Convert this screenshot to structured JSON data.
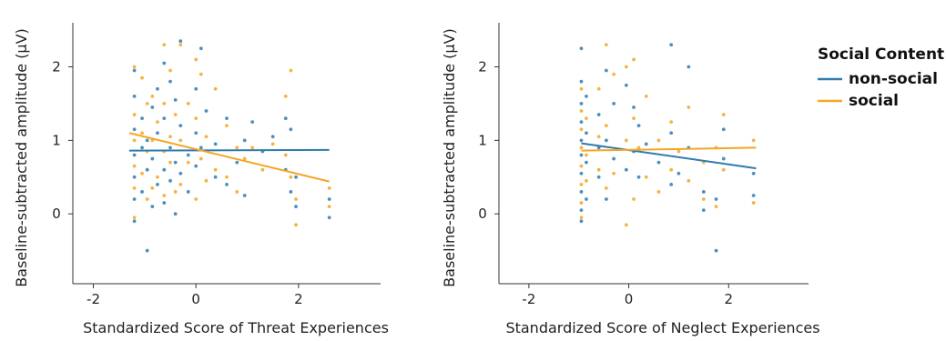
{
  "legend": {
    "title": "Social Content",
    "entries": [
      {
        "name": "non-social",
        "color": "#2e7bb0"
      },
      {
        "name": "social",
        "color": "#f5a623"
      }
    ]
  },
  "chart_data": [
    {
      "type": "scatter",
      "xlabel": "Standardized Score of Threat Experiences",
      "ylabel": "Baseline-subtracted amplitude (µV)",
      "xlim": [
        -2.4,
        3.6
      ],
      "ylim": [
        -0.95,
        2.6
      ],
      "xticks": [
        -2,
        0,
        2
      ],
      "yticks": [
        0,
        1,
        2
      ],
      "x_columns": [
        -1.2,
        -1.05,
        -0.95,
        -0.85,
        -0.75,
        -0.62,
        -0.5,
        -0.4,
        -0.3,
        -0.15,
        0.0,
        0.1,
        0.2,
        0.38,
        0.6,
        0.8,
        0.95,
        1.1,
        1.3,
        1.5,
        1.75,
        1.85,
        1.95,
        2.6
      ],
      "series": [
        {
          "name": "non-social",
          "color": "#2e7bb0",
          "points": [
            [
              -1.2,
              1.95
            ],
            [
              -1.2,
              1.6
            ],
            [
              -1.2,
              1.15
            ],
            [
              -1.2,
              0.8
            ],
            [
              -1.2,
              0.5
            ],
            [
              -1.2,
              0.2
            ],
            [
              -1.2,
              -0.1
            ],
            [
              -1.05,
              1.3
            ],
            [
              -1.05,
              0.9
            ],
            [
              -1.05,
              0.3
            ],
            [
              -0.95,
              1.0
            ],
            [
              -0.95,
              0.6
            ],
            [
              -0.95,
              -0.5
            ],
            [
              -0.85,
              1.45
            ],
            [
              -0.85,
              0.75
            ],
            [
              -0.85,
              0.1
            ],
            [
              -0.75,
              1.7
            ],
            [
              -0.75,
              1.1
            ],
            [
              -0.75,
              0.4
            ],
            [
              -0.62,
              2.05
            ],
            [
              -0.62,
              1.3
            ],
            [
              -0.62,
              0.6
            ],
            [
              -0.62,
              0.15
            ],
            [
              -0.5,
              1.8
            ],
            [
              -0.5,
              0.9
            ],
            [
              -0.5,
              0.45
            ],
            [
              -0.4,
              1.55
            ],
            [
              -0.4,
              0.7
            ],
            [
              -0.4,
              0.0
            ],
            [
              -0.3,
              2.35
            ],
            [
              -0.3,
              1.2
            ],
            [
              -0.3,
              0.55
            ],
            [
              -0.15,
              0.8
            ],
            [
              -0.15,
              0.3
            ],
            [
              0.0,
              1.7
            ],
            [
              0.0,
              1.1
            ],
            [
              0.0,
              0.65
            ],
            [
              0.1,
              2.25
            ],
            [
              0.1,
              0.9
            ],
            [
              0.2,
              1.4
            ],
            [
              0.38,
              0.95
            ],
            [
              0.38,
              0.5
            ],
            [
              0.6,
              1.3
            ],
            [
              0.6,
              0.4
            ],
            [
              0.8,
              0.7
            ],
            [
              0.95,
              1.0
            ],
            [
              0.95,
              0.25
            ],
            [
              1.1,
              1.25
            ],
            [
              1.3,
              0.85
            ],
            [
              1.5,
              1.05
            ],
            [
              1.75,
              1.3
            ],
            [
              1.75,
              0.6
            ],
            [
              1.85,
              1.15
            ],
            [
              1.85,
              0.3
            ],
            [
              1.95,
              0.5
            ],
            [
              1.95,
              0.1
            ],
            [
              2.6,
              0.2
            ],
            [
              2.6,
              -0.05
            ]
          ]
        },
        {
          "name": "social",
          "color": "#f5a623",
          "points": [
            [
              -1.2,
              2.0
            ],
            [
              -1.2,
              1.35
            ],
            [
              -1.2,
              1.0
            ],
            [
              -1.2,
              0.65
            ],
            [
              -1.2,
              0.35
            ],
            [
              -1.2,
              -0.05
            ],
            [
              -1.05,
              1.85
            ],
            [
              -1.05,
              1.1
            ],
            [
              -1.05,
              0.55
            ],
            [
              -0.95,
              1.5
            ],
            [
              -0.95,
              0.85
            ],
            [
              -0.95,
              0.2
            ],
            [
              -0.85,
              1.6
            ],
            [
              -0.85,
              1.0
            ],
            [
              -0.85,
              0.35
            ],
            [
              -0.75,
              1.25
            ],
            [
              -0.75,
              0.5
            ],
            [
              -0.62,
              2.3
            ],
            [
              -0.62,
              1.5
            ],
            [
              -0.62,
              0.85
            ],
            [
              -0.62,
              0.25
            ],
            [
              -0.5,
              1.95
            ],
            [
              -0.5,
              1.05
            ],
            [
              -0.5,
              0.7
            ],
            [
              -0.4,
              1.35
            ],
            [
              -0.4,
              0.3
            ],
            [
              -0.3,
              2.3
            ],
            [
              -0.3,
              1.0
            ],
            [
              -0.3,
              0.4
            ],
            [
              -0.15,
              1.5
            ],
            [
              -0.15,
              0.7
            ],
            [
              0.0,
              2.1
            ],
            [
              0.0,
              1.3
            ],
            [
              0.0,
              0.2
            ],
            [
              0.1,
              1.9
            ],
            [
              0.1,
              0.75
            ],
            [
              0.2,
              1.05
            ],
            [
              0.2,
              0.45
            ],
            [
              0.38,
              1.7
            ],
            [
              0.38,
              0.6
            ],
            [
              0.6,
              1.2
            ],
            [
              0.6,
              0.5
            ],
            [
              0.8,
              0.9
            ],
            [
              0.8,
              0.3
            ],
            [
              0.95,
              0.75
            ],
            [
              1.1,
              0.9
            ],
            [
              1.3,
              0.6
            ],
            [
              1.5,
              0.95
            ],
            [
              1.75,
              1.6
            ],
            [
              1.75,
              0.8
            ],
            [
              1.85,
              1.95
            ],
            [
              1.85,
              0.5
            ],
            [
              1.95,
              0.2
            ],
            [
              1.95,
              -0.15
            ],
            [
              2.6,
              0.35
            ],
            [
              2.6,
              0.1
            ]
          ]
        }
      ],
      "fit_lines": [
        {
          "name": "non-social",
          "color": "#2e7bb0",
          "x": [
            -1.3,
            2.6
          ],
          "y": [
            0.86,
            0.87
          ]
        },
        {
          "name": "social",
          "color": "#f5a623",
          "x": [
            -1.3,
            2.6
          ],
          "y": [
            1.1,
            0.44
          ]
        }
      ]
    },
    {
      "type": "scatter",
      "xlabel": "Standardized Score of Neglect Experiences",
      "ylabel": "Baseline-subtracted amplitude (µV)",
      "xlim": [
        -2.6,
        3.6
      ],
      "ylim": [
        -0.95,
        2.6
      ],
      "xticks": [
        -2,
        0,
        2
      ],
      "yticks": [
        0,
        1,
        2
      ],
      "x_columns": [
        -0.95,
        -0.85,
        -0.6,
        -0.45,
        -0.3,
        -0.05,
        0.1,
        0.2,
        0.35,
        0.6,
        0.85,
        1.0,
        1.2,
        1.5,
        1.75,
        1.9,
        2.5
      ],
      "series": [
        {
          "name": "non-social",
          "color": "#2e7bb0",
          "points": [
            [
              -0.95,
              2.25
            ],
            [
              -0.95,
              1.8
            ],
            [
              -0.95,
              1.5
            ],
            [
              -0.95,
              1.25
            ],
            [
              -0.95,
              1.0
            ],
            [
              -0.95,
              0.8
            ],
            [
              -0.95,
              0.55
            ],
            [
              -0.95,
              0.3
            ],
            [
              -0.95,
              0.05
            ],
            [
              -0.95,
              -0.1
            ],
            [
              -0.85,
              1.6
            ],
            [
              -0.85,
              1.1
            ],
            [
              -0.85,
              0.7
            ],
            [
              -0.85,
              0.2
            ],
            [
              -0.6,
              1.35
            ],
            [
              -0.6,
              0.9
            ],
            [
              -0.6,
              0.5
            ],
            [
              -0.45,
              1.95
            ],
            [
              -0.45,
              1.0
            ],
            [
              -0.45,
              0.2
            ],
            [
              -0.3,
              1.5
            ],
            [
              -0.3,
              0.75
            ],
            [
              -0.05,
              1.75
            ],
            [
              -0.05,
              0.6
            ],
            [
              0.1,
              1.45
            ],
            [
              0.1,
              0.85
            ],
            [
              0.2,
              1.2
            ],
            [
              0.2,
              0.5
            ],
            [
              0.35,
              0.95
            ],
            [
              0.6,
              0.7
            ],
            [
              0.85,
              2.3
            ],
            [
              0.85,
              1.1
            ],
            [
              0.85,
              0.4
            ],
            [
              1.0,
              0.55
            ],
            [
              1.2,
              2.0
            ],
            [
              1.2,
              0.9
            ],
            [
              1.5,
              0.3
            ],
            [
              1.5,
              0.05
            ],
            [
              1.75,
              -0.5
            ],
            [
              1.75,
              0.2
            ],
            [
              1.9,
              1.15
            ],
            [
              1.9,
              0.75
            ],
            [
              2.5,
              0.55
            ],
            [
              2.5,
              0.25
            ]
          ]
        },
        {
          "name": "social",
          "color": "#f5a623",
          "points": [
            [
              -0.95,
              1.7
            ],
            [
              -0.95,
              1.4
            ],
            [
              -0.95,
              1.15
            ],
            [
              -0.95,
              0.9
            ],
            [
              -0.95,
              0.65
            ],
            [
              -0.95,
              0.4
            ],
            [
              -0.95,
              0.15
            ],
            [
              -0.95,
              -0.05
            ],
            [
              -0.85,
              1.3
            ],
            [
              -0.85,
              0.8
            ],
            [
              -0.85,
              0.45
            ],
            [
              -0.6,
              1.7
            ],
            [
              -0.6,
              1.05
            ],
            [
              -0.6,
              0.6
            ],
            [
              -0.45,
              2.3
            ],
            [
              -0.45,
              1.2
            ],
            [
              -0.45,
              0.35
            ],
            [
              -0.3,
              1.9
            ],
            [
              -0.3,
              0.55
            ],
            [
              -0.05,
              2.0
            ],
            [
              -0.05,
              1.0
            ],
            [
              -0.05,
              -0.15
            ],
            [
              0.1,
              2.1
            ],
            [
              0.1,
              1.3
            ],
            [
              0.1,
              0.2
            ],
            [
              0.2,
              0.9
            ],
            [
              0.35,
              1.6
            ],
            [
              0.35,
              0.5
            ],
            [
              0.6,
              1.0
            ],
            [
              0.6,
              0.3
            ],
            [
              0.85,
              1.25
            ],
            [
              0.85,
              0.6
            ],
            [
              1.0,
              0.85
            ],
            [
              1.2,
              1.45
            ],
            [
              1.2,
              0.45
            ],
            [
              1.5,
              0.7
            ],
            [
              1.5,
              0.2
            ],
            [
              1.75,
              0.9
            ],
            [
              1.75,
              0.1
            ],
            [
              1.9,
              1.35
            ],
            [
              1.9,
              0.6
            ],
            [
              2.5,
              1.0
            ],
            [
              2.5,
              0.15
            ]
          ]
        }
      ],
      "fit_lines": [
        {
          "name": "non-social",
          "color": "#2e7bb0",
          "x": [
            -0.95,
            2.55
          ],
          "y": [
            0.96,
            0.62
          ]
        },
        {
          "name": "social",
          "color": "#f5a623",
          "x": [
            -0.95,
            2.55
          ],
          "y": [
            0.86,
            0.9
          ]
        }
      ]
    }
  ]
}
